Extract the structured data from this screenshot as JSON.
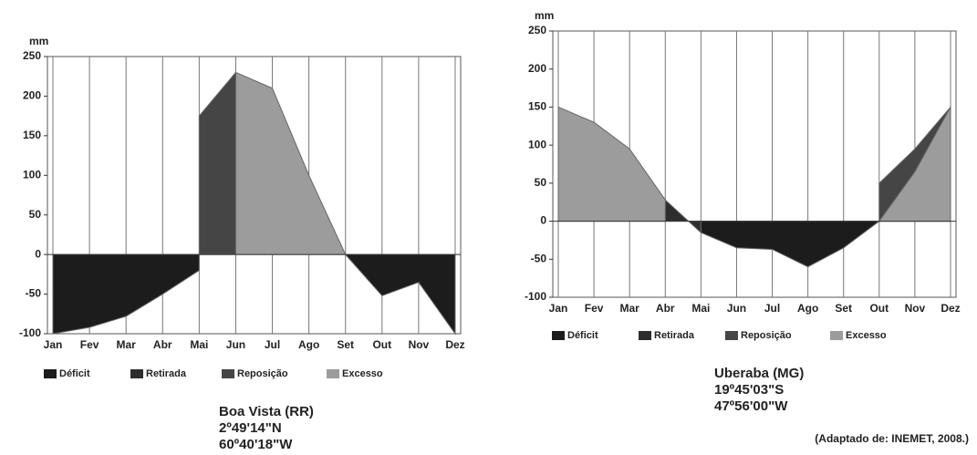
{
  "chart_data": [
    {
      "type": "area",
      "title": "Boa Vista (RR)",
      "annotations": [
        "2º49'14\"N",
        "60º40'18\"W"
      ],
      "y_label": "mm",
      "categories": [
        "Jan",
        "Fev",
        "Mar",
        "Abr",
        "Mai",
        "Jun",
        "Jul",
        "Ago",
        "Set",
        "Out",
        "Nov",
        "Dez"
      ],
      "ylim": [
        -100,
        250
      ],
      "yticks": [
        -100,
        -50,
        0,
        50,
        100,
        150,
        200,
        250
      ],
      "series": [
        {
          "name": "Déficit",
          "color": "#1c1c1c",
          "values": [
            -100,
            -92,
            -78,
            -50,
            -20,
            null,
            null,
            null,
            0,
            -52,
            -35,
            -100
          ]
        },
        {
          "name": "Retirada",
          "color": "#2e2e2e",
          "values": [
            null,
            null,
            null,
            null,
            null,
            null,
            null,
            null,
            null,
            null,
            null,
            null
          ]
        },
        {
          "name": "Reposição",
          "color": "#454545",
          "values": [
            null,
            null,
            null,
            null,
            175,
            230,
            null,
            null,
            null,
            null,
            null,
            null
          ]
        },
        {
          "name": "Excesso",
          "color": "#9c9c9c",
          "values": [
            null,
            null,
            null,
            null,
            null,
            230,
            210,
            100,
            0,
            null,
            null,
            null
          ]
        }
      ]
    },
    {
      "type": "area",
      "title": "Uberaba (MG)",
      "annotations": [
        "19º45'03\"S",
        "47º56'00\"W"
      ],
      "y_label": "mm",
      "categories": [
        "Jan",
        "Fev",
        "Mar",
        "Abr",
        "Mai",
        "Jun",
        "Jul",
        "Ago",
        "Set",
        "Out",
        "Nov",
        "Dez"
      ],
      "ylim": [
        -100,
        250
      ],
      "yticks": [
        -100,
        -50,
        0,
        50,
        100,
        150,
        200,
        250
      ],
      "series": [
        {
          "name": "Déficit",
          "color": "#1c1c1c",
          "values": [
            null,
            null,
            null,
            null,
            -15,
            -35,
            -37,
            -60,
            -35,
            0,
            null,
            null
          ]
        },
        {
          "name": "Retirada",
          "color": "#2e2e2e",
          "values": [
            null,
            null,
            null,
            28,
            -15,
            null,
            null,
            null,
            null,
            null,
            null,
            null
          ]
        },
        {
          "name": "Reposição",
          "color": "#454545",
          "values": [
            null,
            null,
            null,
            null,
            null,
            null,
            null,
            null,
            null,
            50,
            95,
            150
          ]
        },
        {
          "name": "Excesso",
          "color": "#9c9c9c",
          "values": [
            150,
            130,
            95,
            28,
            null,
            null,
            null,
            null,
            null,
            0,
            65,
            150
          ]
        }
      ]
    }
  ],
  "source": "(Adaptado de: INEMET, 2008.)"
}
